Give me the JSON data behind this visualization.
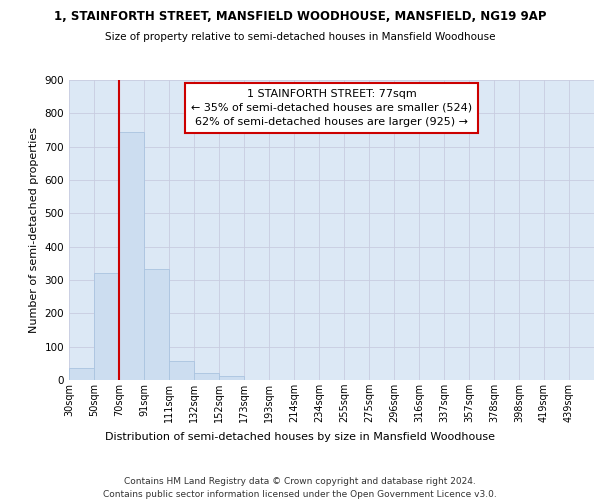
{
  "title_line1": "1, STAINFORTH STREET, MANSFIELD WOODHOUSE, MANSFIELD, NG19 9AP",
  "title_line2": "Size of property relative to semi-detached houses in Mansfield Woodhouse",
  "xlabel": "Distribution of semi-detached houses by size in Mansfield Woodhouse",
  "ylabel": "Number of semi-detached properties",
  "footer_line1": "Contains HM Land Registry data © Crown copyright and database right 2024.",
  "footer_line2": "Contains public sector information licensed under the Open Government Licence v3.0.",
  "bin_labels": [
    "30sqm",
    "50sqm",
    "70sqm",
    "91sqm",
    "111sqm",
    "132sqm",
    "152sqm",
    "173sqm",
    "193sqm",
    "214sqm",
    "234sqm",
    "255sqm",
    "275sqm",
    "296sqm",
    "316sqm",
    "337sqm",
    "357sqm",
    "378sqm",
    "398sqm",
    "419sqm",
    "439sqm"
  ],
  "bar_values": [
    35,
    322,
    745,
    332,
    57,
    22,
    13,
    0,
    0,
    0,
    0,
    0,
    0,
    0,
    0,
    0,
    0,
    0,
    0,
    0,
    0
  ],
  "bar_color": "#ccddf0",
  "bar_edgecolor": "#aac4e0",
  "grid_color": "#c8cce0",
  "background_color": "#dce8f5",
  "vline_color": "#cc0000",
  "annotation_title": "1 STAINFORTH STREET: 77sqm",
  "annotation_line1": "← 35% of semi-detached houses are smaller (524)",
  "annotation_line2": "62% of semi-detached houses are larger (925) →",
  "annotation_box_edgecolor": "#cc0000",
  "ylim": [
    0,
    900
  ],
  "yticks": [
    0,
    100,
    200,
    300,
    400,
    500,
    600,
    700,
    800,
    900
  ]
}
